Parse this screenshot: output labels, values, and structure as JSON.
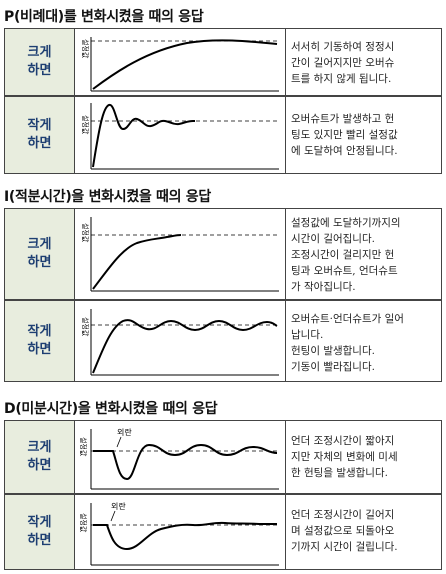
{
  "sections": [
    {
      "title": "P(비례대)를 변화시켰을 때의 응답",
      "rows": [
        {
          "label": "크게\n하면",
          "desc": "서서히 기동하여 정정시\n간이 길어지지만 오버슈\n트를 하지 않게 됩니다."
        },
        {
          "label": "작게\n하면",
          "desc": "오버슈트가 발생하고 헌\n팅도 있지만 빨리 설정값\n에 도달하여 안정됩니다."
        }
      ]
    },
    {
      "title": "I(적분시간)을 변화시켰을 때의 응답",
      "rows": [
        {
          "label": "크게\n하면",
          "desc": "설정값에 도달하기까지의\n시간이 길어집니다.\n조정시간이 걸리지만 헌\n팅과 오버슈트, 언더슈트\n가 작아집니다."
        },
        {
          "label": "작게\n하면",
          "desc": "오버슈트·언더슈트가 일어\n납니다.\n헌팅이 발생합니다.\n기동이 빨라집니다."
        }
      ]
    },
    {
      "title": "D(미분시간)을 변화시켰을 때의 응답",
      "rows": [
        {
          "label": "크게\n하면",
          "desc": "언더 조정시간이 짧아지\n지만 자체의 변화에 미세\n한 헌팅을 발생합니다."
        },
        {
          "label": "작게\n하면",
          "desc": "언더 조정시간이 길어지\n며 설정값으로 되돌아오\n기까지 시간이 걸립니다."
        }
      ]
    }
  ],
  "graph": {
    "ylabel": "설정값",
    "disturbance": "외란"
  }
}
